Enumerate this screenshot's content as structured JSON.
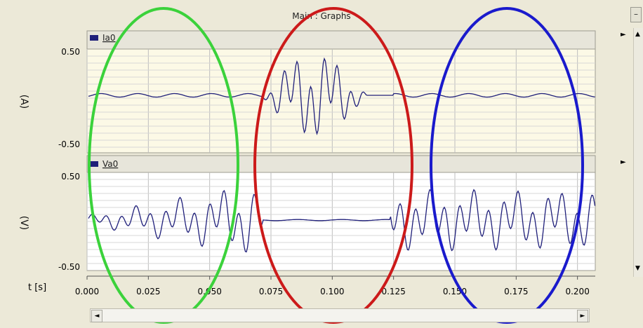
{
  "window": {
    "title": "Main : Graphs"
  },
  "graphs": [
    {
      "signal": "Ia0",
      "unit_label": "(A)",
      "y_ticks": [
        "0.50",
        "-0.50"
      ],
      "line_color": "#1f1f7a"
    },
    {
      "signal": "Va0",
      "unit_label": "(V)",
      "y_ticks": [
        "0.50",
        "-0.50"
      ],
      "line_color": "#1f1f7a"
    }
  ],
  "x_axis": {
    "label": "t [s]",
    "ticks": [
      "0.000",
      "0.025",
      "0.050",
      "0.075",
      "0.100",
      "0.125",
      "0.150",
      "0.175",
      "0.200"
    ]
  },
  "annotations": [
    {
      "name": "green-ellipse",
      "color": "#3bd23b"
    },
    {
      "name": "red-ellipse",
      "color": "#cc1a1a"
    },
    {
      "name": "blue-ellipse",
      "color": "#1a1acc"
    }
  ],
  "controls": {
    "minimize_glyph": "–",
    "scroll_left": "◄",
    "scroll_right": "►",
    "scroll_up": "▲",
    "scroll_down": "▼",
    "graph_menu_arrow": "►"
  }
}
